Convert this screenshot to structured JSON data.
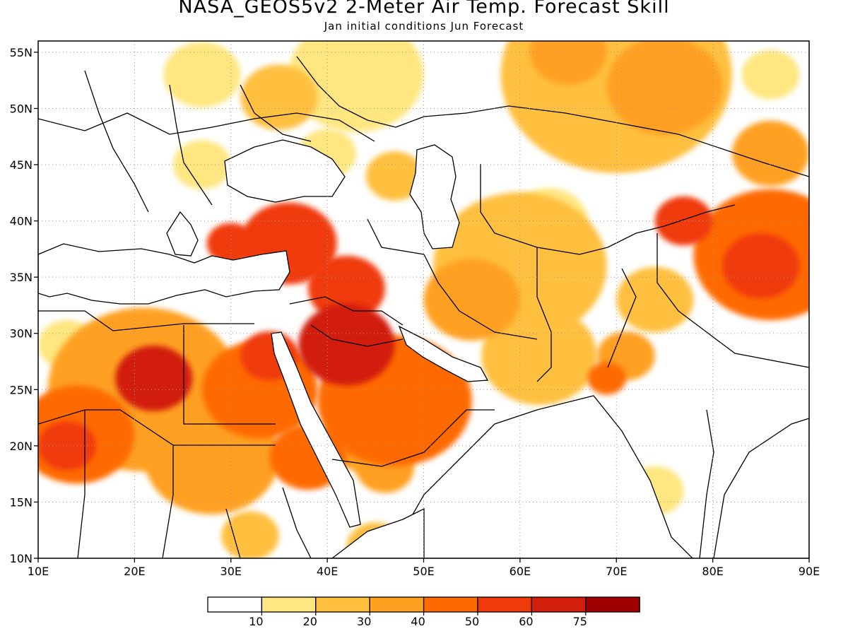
{
  "title": "NASA_GEOS5v2 2-Meter Air Temp. Forecast Skill",
  "subtitle": "Jan initial conditions  Jun Forecast",
  "map": {
    "region": {
      "lon_min": 10,
      "lon_max": 90,
      "lat_min": 10,
      "lat_max": 56
    },
    "x_ticks": [
      {
        "value": 10,
        "label": "10E"
      },
      {
        "value": 20,
        "label": "20E"
      },
      {
        "value": 30,
        "label": "30E"
      },
      {
        "value": 40,
        "label": "40E"
      },
      {
        "value": 50,
        "label": "50E"
      },
      {
        "value": 60,
        "label": "60E"
      },
      {
        "value": 70,
        "label": "70E"
      },
      {
        "value": 80,
        "label": "80E"
      },
      {
        "value": 90,
        "label": "90E"
      }
    ],
    "y_ticks": [
      {
        "value": 10,
        "label": "10N"
      },
      {
        "value": 15,
        "label": "15N"
      },
      {
        "value": 20,
        "label": "20N"
      },
      {
        "value": 25,
        "label": "25N"
      },
      {
        "value": 30,
        "label": "30N"
      },
      {
        "value": 35,
        "label": "35N"
      },
      {
        "value": 40,
        "label": "40N"
      },
      {
        "value": 45,
        "label": "45N"
      },
      {
        "value": 50,
        "label": "50N"
      },
      {
        "value": 55,
        "label": "55N"
      }
    ],
    "grid": "dotted"
  },
  "colorbar": {
    "bins": [
      {
        "color": "#ffffff"
      },
      {
        "color": "#ffe680"
      },
      {
        "color": "#ffc040"
      },
      {
        "color": "#ffa020"
      },
      {
        "color": "#ff6a00"
      },
      {
        "color": "#f03a0a"
      },
      {
        "color": "#d21e0a"
      },
      {
        "color": "#a00000"
      }
    ],
    "labels": [
      "10",
      "20",
      "30",
      "40",
      "50",
      "60",
      "75"
    ]
  },
  "skill_blobs": [
    {
      "lon": 43,
      "lat": 53,
      "r": 7,
      "level": 1
    },
    {
      "lon": 27,
      "lat": 53,
      "r": 4,
      "level": 1
    },
    {
      "lon": 35,
      "lat": 51,
      "r": 4,
      "level": 2
    },
    {
      "lon": 40,
      "lat": 46,
      "r": 3,
      "level": 1
    },
    {
      "lon": 47,
      "lat": 44,
      "r": 3,
      "level": 2
    },
    {
      "lon": 70,
      "lat": 53,
      "r": 12,
      "level": 2
    },
    {
      "lon": 75,
      "lat": 52,
      "r": 6,
      "level": 3
    },
    {
      "lon": 65,
      "lat": 55,
      "r": 4,
      "level": 3
    },
    {
      "lon": 86,
      "lat": 53,
      "r": 3,
      "level": 1
    },
    {
      "lon": 86,
      "lat": 46,
      "r": 4,
      "level": 3
    },
    {
      "lon": 86,
      "lat": 37,
      "r": 8,
      "level": 4
    },
    {
      "lon": 85,
      "lat": 36,
      "r": 4,
      "level": 5
    },
    {
      "lon": 77,
      "lat": 40,
      "r": 3,
      "level": 5
    },
    {
      "lon": 74,
      "lat": 33,
      "r": 4,
      "level": 2
    },
    {
      "lon": 60,
      "lat": 36,
      "r": 9,
      "level": 2
    },
    {
      "lon": 63,
      "lat": 40,
      "r": 4,
      "level": 1
    },
    {
      "lon": 55,
      "lat": 33,
      "r": 5,
      "level": 3
    },
    {
      "lon": 62,
      "lat": 28,
      "r": 6,
      "level": 2
    },
    {
      "lon": 71,
      "lat": 28,
      "r": 3,
      "level": 3
    },
    {
      "lon": 69,
      "lat": 26,
      "r": 2,
      "level": 4
    },
    {
      "lon": 47,
      "lat": 24,
      "r": 8,
      "level": 4
    },
    {
      "lon": 45,
      "lat": 21,
      "r": 5,
      "level": 3
    },
    {
      "lon": 42,
      "lat": 29,
      "r": 5,
      "level": 6
    },
    {
      "lon": 42,
      "lat": 34,
      "r": 4,
      "level": 5
    },
    {
      "lon": 36,
      "lat": 38,
      "r": 5,
      "level": 5
    },
    {
      "lon": 30,
      "lat": 38,
      "r": 2.5,
      "level": 5
    },
    {
      "lon": 46,
      "lat": 18,
      "r": 3,
      "level": 3
    },
    {
      "lon": 21,
      "lat": 25,
      "r": 10,
      "level": 3
    },
    {
      "lon": 22,
      "lat": 26,
      "r": 4,
      "level": 6
    },
    {
      "lon": 33,
      "lat": 25,
      "r": 6,
      "level": 4
    },
    {
      "lon": 34,
      "lat": 28,
      "r": 3,
      "level": 5
    },
    {
      "lon": 14,
      "lat": 21,
      "r": 6,
      "level": 4
    },
    {
      "lon": 13,
      "lat": 20,
      "r": 3,
      "level": 5
    },
    {
      "lon": 28,
      "lat": 19,
      "r": 7,
      "level": 3
    },
    {
      "lon": 38,
      "lat": 19,
      "r": 4,
      "level": 4
    },
    {
      "lon": 13,
      "lat": 29,
      "r": 3,
      "level": 1
    },
    {
      "lon": 27,
      "lat": 45,
      "r": 3,
      "level": 1
    },
    {
      "lon": 74,
      "lat": 16,
      "r": 3,
      "level": 1
    },
    {
      "lon": 45,
      "lat": 11,
      "r": 3,
      "level": 2
    },
    {
      "lon": 32,
      "lat": 12,
      "r": 3,
      "level": 2
    }
  ]
}
